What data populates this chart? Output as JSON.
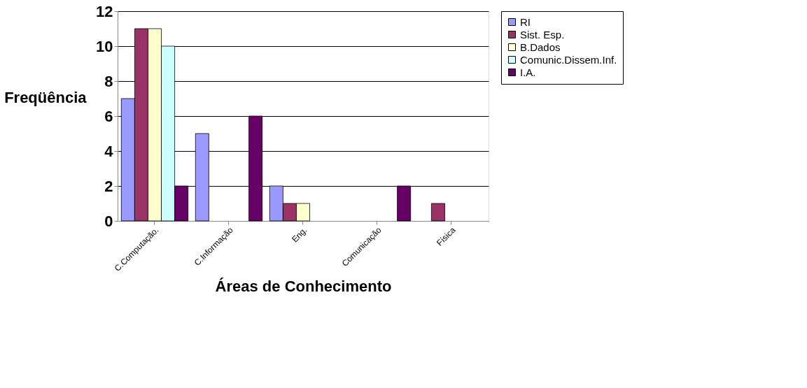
{
  "chart_data": {
    "type": "bar",
    "xlabel": "Áreas de Conhecimento",
    "ylabel": "Freqüência",
    "categories": [
      "C.Computação.",
      "C.Informação",
      "Eng.",
      "Comunicação",
      "Física"
    ],
    "series": [
      {
        "name": "RI",
        "color": "#9999ff",
        "values": [
          7,
          5,
          2,
          0,
          0
        ]
      },
      {
        "name": "Sist. Esp.",
        "color": "#993366",
        "values": [
          11,
          0,
          1,
          0,
          1
        ]
      },
      {
        "name": "B.Dados",
        "color": "#ffffcc",
        "values": [
          11,
          0,
          1,
          0,
          0
        ]
      },
      {
        "name": "Comunic.Dissem.Inf.",
        "color": "#ccffff",
        "values": [
          10,
          0,
          0,
          0,
          0
        ]
      },
      {
        "name": "I.A.",
        "color": "#660066",
        "values": [
          2,
          6,
          0,
          2,
          0
        ]
      }
    ],
    "ylim": [
      0,
      12
    ],
    "yticks": [
      0,
      2,
      4,
      6,
      8,
      10,
      12
    ],
    "grid": "y",
    "legend": "right"
  }
}
